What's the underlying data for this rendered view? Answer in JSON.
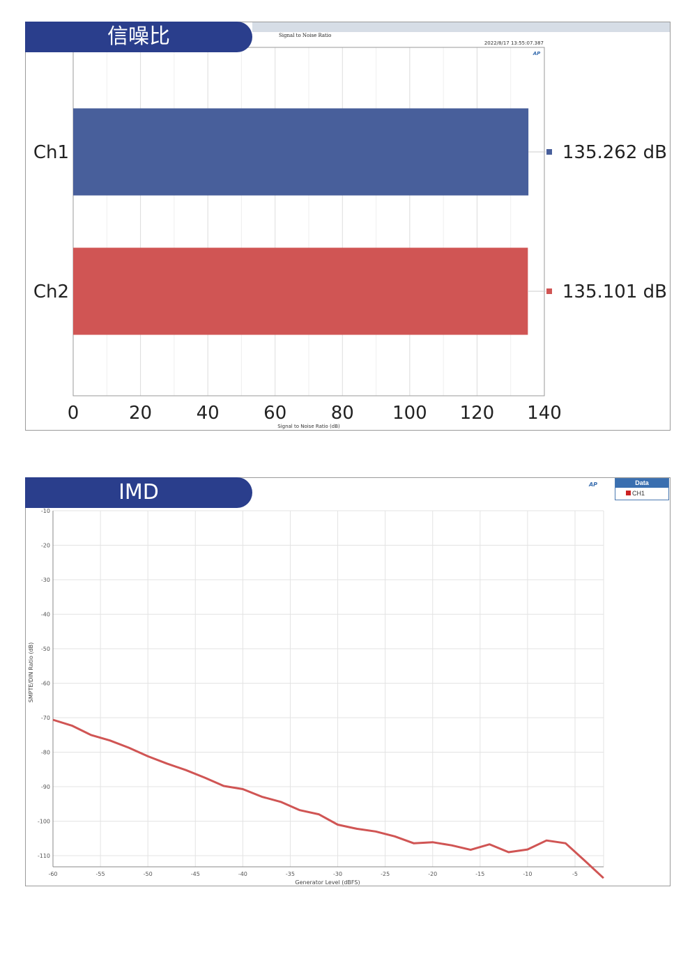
{
  "panels": {
    "snr": {
      "badge": "信噪比",
      "header_title": "Signal to Noise Ratio",
      "timestamp": "2022/8/17 13:55:07.387",
      "ap_logo": "AP"
    },
    "imd": {
      "badge": "IMD",
      "ap_logo": "AP",
      "legend_title": "Data",
      "legend_item": "CH1"
    }
  },
  "chart_data": [
    {
      "type": "bar",
      "orientation": "horizontal",
      "categories": [
        "Ch1",
        "Ch2"
      ],
      "values": [
        135.262,
        135.101
      ],
      "value_labels": [
        "135.262 dB",
        "135.101 dB"
      ],
      "colors": [
        "#485f9b",
        "#d05554"
      ],
      "xlabel": "Signal to Noise Ratio (dB)",
      "xlim": [
        0,
        140
      ],
      "xticks": [
        "0",
        "20",
        "40",
        "60",
        "80",
        "100",
        "120",
        "140"
      ],
      "grid": true
    },
    {
      "type": "line",
      "xlabel": "Generator Level (dBFS)",
      "ylabel": "SMPTE/DIN Ratio (dB)",
      "xlim": [
        -60,
        -2
      ],
      "ylim": [
        -112.5,
        -10
      ],
      "xticks": [
        "-60",
        "-55",
        "-50",
        "-45",
        "-40",
        "-35",
        "-30",
        "-25",
        "-20",
        "-15",
        "-10",
        "-5"
      ],
      "yticks": [
        "-10",
        "-20",
        "-30",
        "-40",
        "-50",
        "-60",
        "-70",
        "-80",
        "-90",
        "-100",
        "-110"
      ],
      "grid": true,
      "legend_position": "top-right",
      "series": [
        {
          "name": "CH1",
          "color": "#d05554",
          "x": [
            -60,
            -58,
            -56,
            -54,
            -52,
            -50,
            -48,
            -46,
            -44,
            -42,
            -40,
            -38,
            -36,
            -34,
            -32,
            -30,
            -28,
            -26,
            -24,
            -22,
            -20,
            -18,
            -16,
            -14,
            -12,
            -10,
            -8,
            -6,
            -4,
            -2
          ],
          "y": [
            -70.6,
            -72.3,
            -75.0,
            -76.6,
            -78.7,
            -81.2,
            -83.3,
            -85.2,
            -87.4,
            -89.8,
            -90.7,
            -92.9,
            -94.4,
            -96.8,
            -98.0,
            -101.0,
            -102.2,
            -103.0,
            -104.4,
            -106.4,
            -106.1,
            -107.0,
            -108.3,
            -106.7,
            -109.0,
            -108.2,
            -105.6,
            -106.4,
            -111.4,
            -116.5
          ]
        }
      ]
    }
  ]
}
